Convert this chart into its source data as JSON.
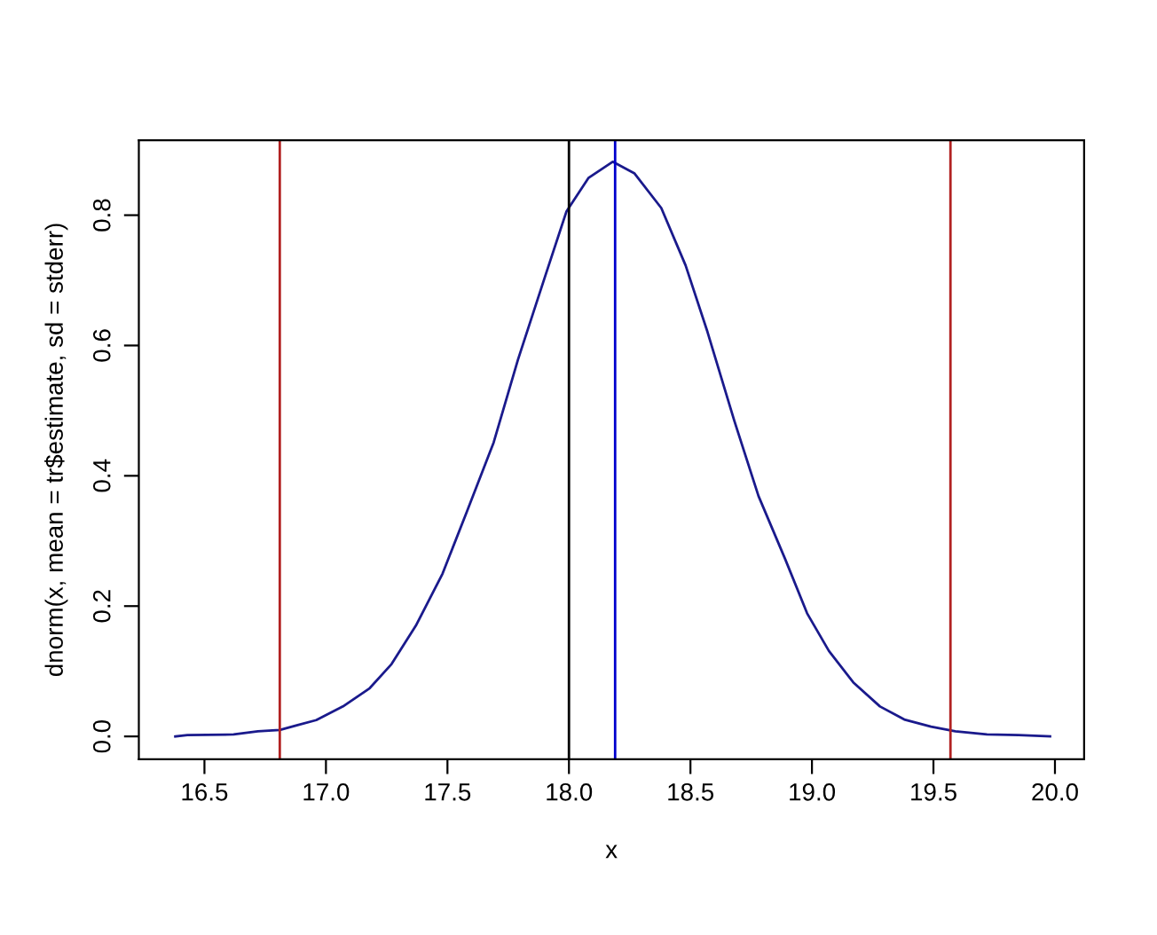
{
  "chart_data": {
    "type": "line",
    "xlabel": "x",
    "ylabel": "dnorm(x, mean = tr$estimate, sd = stderr)",
    "series": [
      {
        "color": "#1a1a8c",
        "x": [
          16.38,
          16.43,
          16.62,
          16.72,
          16.81,
          16.88,
          16.96,
          17.07,
          17.18,
          17.27,
          17.37,
          17.48,
          17.58,
          17.69,
          17.79,
          17.9,
          17.99,
          18.08,
          18.18,
          18.27,
          18.38,
          18.48,
          18.57,
          18.68,
          18.78,
          18.89,
          18.98,
          19.07,
          19.17,
          19.28,
          19.38,
          19.49,
          19.59,
          19.72,
          19.85,
          19.98
        ],
        "values": [
          0.0,
          0.002,
          0.003,
          0.008,
          0.01,
          0.017,
          0.025,
          0.046,
          0.074,
          0.111,
          0.17,
          0.25,
          0.345,
          0.451,
          0.578,
          0.704,
          0.806,
          0.857,
          0.882,
          0.864,
          0.811,
          0.723,
          0.621,
          0.485,
          0.369,
          0.272,
          0.189,
          0.131,
          0.083,
          0.046,
          0.026,
          0.015,
          0.008,
          0.003,
          0.002,
          0.0
        ]
      }
    ],
    "ref_lines": [
      {
        "axis": "x",
        "value": 16.81,
        "color": "#b22222"
      },
      {
        "axis": "x",
        "value": 19.57,
        "color": "#b22222"
      },
      {
        "axis": "x",
        "value": 18.0,
        "color": "#000000"
      },
      {
        "axis": "x",
        "value": 18.19,
        "color": "#0000cd"
      }
    ],
    "xlim": [
      16.23,
      20.12
    ],
    "ylim": [
      -0.035,
      0.915
    ],
    "xticks": [
      16.5,
      {
        "value": 17,
        "label": "17.0"
      },
      17.5,
      {
        "value": 18,
        "label": "18.0"
      },
      18.5,
      {
        "value": 19,
        "label": "19.0"
      },
      19.5,
      {
        "value": 20,
        "label": "20.0"
      }
    ],
    "yticks": [
      {
        "value": 0,
        "label": "0.0"
      },
      0.2,
      0.4,
      0.6,
      0.8
    ],
    "grid": false,
    "marker": "none",
    "line_style": "solid"
  }
}
